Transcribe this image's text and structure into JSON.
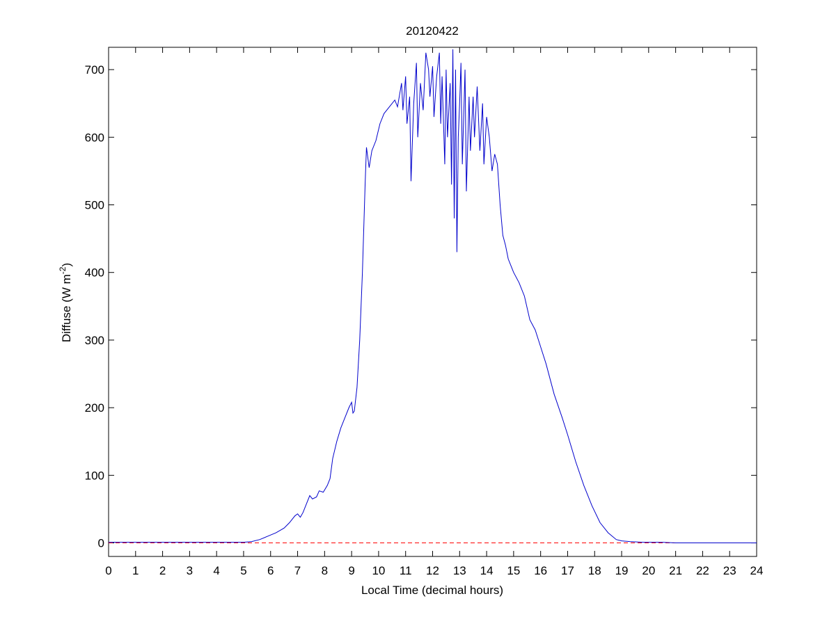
{
  "chart_data": {
    "type": "line",
    "title": "20120422",
    "xlabel": "Local Time (decimal hours)",
    "ylabel": "Diffuse (W m",
    "ylabel_superscript": "-2",
    "ylabel_end": ")",
    "xlim": [
      0,
      24
    ],
    "xticks": [
      0,
      1,
      2,
      3,
      4,
      5,
      6,
      7,
      8,
      9,
      10,
      11,
      12,
      13,
      14,
      15,
      16,
      17,
      18,
      19,
      20,
      21,
      22,
      23,
      24
    ],
    "ylim": [
      -20,
      733
    ],
    "yticks": [
      0,
      100,
      200,
      300,
      400,
      500,
      600,
      700
    ],
    "reference_line": {
      "value": 0,
      "color": "#ff0000"
    },
    "series": [
      {
        "color": "#0000cc",
        "x": [
          0,
          1,
          2,
          3,
          4,
          5,
          5.3,
          5.6,
          5.9,
          6.2,
          6.5,
          6.7,
          6.9,
          7.0,
          7.1,
          7.2,
          7.35,
          7.45,
          7.55,
          7.7,
          7.8,
          7.95,
          8.1,
          8.2,
          8.3,
          8.45,
          8.6,
          8.75,
          8.9,
          9.0,
          9.05,
          9.1,
          9.2,
          9.3,
          9.4,
          9.5,
          9.55,
          9.65,
          9.75,
          9.9,
          10.05,
          10.2,
          10.4,
          10.6,
          10.7,
          10.85,
          10.9,
          11.0,
          11.05,
          11.15,
          11.2,
          11.3,
          11.4,
          11.45,
          11.55,
          11.65,
          11.75,
          11.85,
          11.9,
          12.0,
          12.05,
          12.15,
          12.25,
          12.3,
          12.35,
          12.45,
          12.5,
          12.55,
          12.65,
          12.7,
          12.75,
          12.8,
          12.85,
          12.9,
          12.95,
          13.0,
          13.05,
          13.1,
          13.2,
          13.25,
          13.35,
          13.4,
          13.5,
          13.55,
          13.65,
          13.75,
          13.85,
          13.9,
          14.0,
          14.1,
          14.2,
          14.3,
          14.4,
          14.5,
          14.6,
          14.7,
          14.8,
          15.0,
          15.2,
          15.4,
          15.6,
          15.8,
          16.0,
          16.2,
          16.5,
          16.8,
          17.0,
          17.3,
          17.6,
          17.9,
          18.2,
          18.5,
          18.8,
          19.0,
          19.3,
          19.8,
          20.5,
          21,
          22,
          23,
          24
        ],
        "values": [
          1,
          1,
          1,
          1,
          1,
          1,
          2,
          5,
          10,
          15,
          22,
          30,
          40,
          43,
          38,
          45,
          60,
          70,
          65,
          68,
          77,
          75,
          85,
          95,
          125,
          150,
          170,
          185,
          200,
          208,
          192,
          195,
          230,
          300,
          400,
          530,
          585,
          555,
          580,
          595,
          620,
          635,
          645,
          655,
          645,
          680,
          640,
          690,
          620,
          660,
          535,
          650,
          710,
          600,
          680,
          640,
          725,
          700,
          660,
          705,
          630,
          690,
          725,
          620,
          690,
          560,
          700,
          600,
          680,
          530,
          730,
          480,
          700,
          430,
          600,
          650,
          710,
          560,
          700,
          520,
          660,
          580,
          660,
          600,
          675,
          580,
          650,
          560,
          630,
          600,
          550,
          575,
          560,
          500,
          455,
          440,
          420,
          400,
          385,
          365,
          330,
          315,
          290,
          265,
          220,
          185,
          160,
          120,
          85,
          55,
          30,
          15,
          5,
          3,
          2,
          1,
          1,
          0,
          0,
          0,
          0
        ]
      }
    ]
  }
}
